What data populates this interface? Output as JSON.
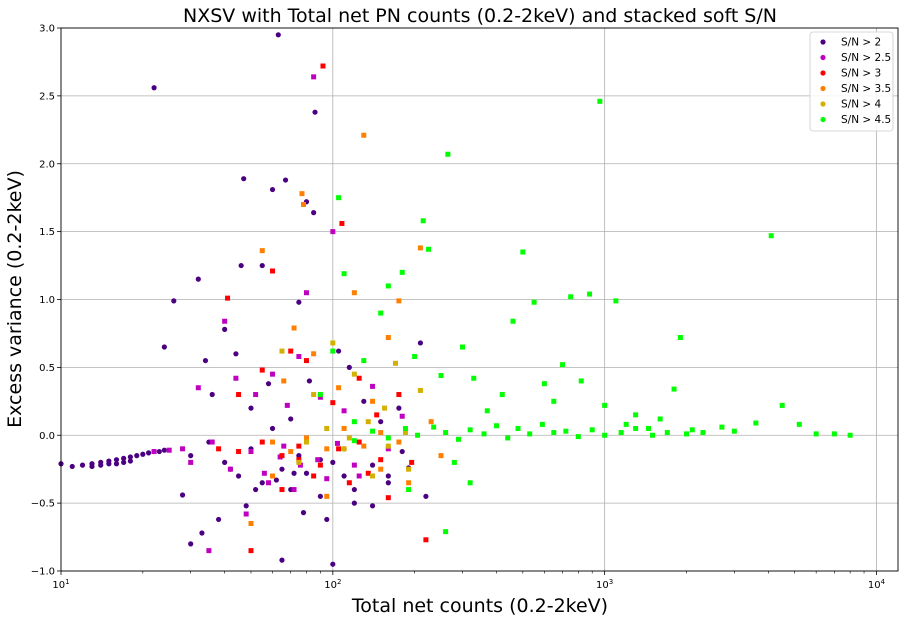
{
  "chart_data": {
    "type": "scatter",
    "title": "NXSV with Total net PN counts (0.2-2keV) and stacked soft S/N",
    "xlabel": "Total net counts (0.2-2keV)",
    "ylabel": "Excess variance (0.2-2keV)",
    "xscale": "log",
    "xlim": [
      10,
      12000
    ],
    "ylim": [
      -1.0,
      3.0
    ],
    "grid": true,
    "legend_position": "top-right",
    "x_ticks": [
      {
        "value": 10,
        "base": "10",
        "exp": "1"
      },
      {
        "value": 100,
        "base": "10",
        "exp": "2"
      },
      {
        "value": 1000,
        "base": "10",
        "exp": "3"
      },
      {
        "value": 10000,
        "base": "10",
        "exp": "4"
      }
    ],
    "y_ticks": [
      {
        "value": -1.0,
        "label": "−1.0"
      },
      {
        "value": -0.5,
        "label": "−0.5"
      },
      {
        "value": 0.0,
        "label": "0.0"
      },
      {
        "value": 0.5,
        "label": "0.5"
      },
      {
        "value": 1.0,
        "label": "1.0"
      },
      {
        "value": 1.5,
        "label": "1.5"
      },
      {
        "value": 2.0,
        "label": "2.0"
      },
      {
        "value": 2.5,
        "label": "2.5"
      },
      {
        "value": 3.0,
        "label": "3.0"
      }
    ],
    "series": [
      {
        "name": "S/N > 2",
        "color": "#4b0082",
        "marker": "circle",
        "points": [
          [
            10,
            -0.21
          ],
          [
            11,
            -0.23
          ],
          [
            12,
            -0.22
          ],
          [
            13,
            -0.21
          ],
          [
            14,
            -0.2
          ],
          [
            15,
            -0.19
          ],
          [
            16,
            -0.18
          ],
          [
            17,
            -0.17
          ],
          [
            18,
            -0.16
          ],
          [
            19,
            -0.15
          ],
          [
            20,
            -0.14
          ],
          [
            21,
            -0.13
          ],
          [
            22,
            -0.12
          ],
          [
            23,
            -0.12
          ],
          [
            24,
            -0.11
          ],
          [
            13,
            -0.23
          ],
          [
            14,
            -0.22
          ],
          [
            15,
            -0.21
          ],
          [
            16,
            -0.21
          ],
          [
            17,
            -0.2
          ],
          [
            18,
            -0.19
          ],
          [
            22,
            2.56
          ],
          [
            24,
            0.65
          ],
          [
            26,
            0.99
          ],
          [
            28,
            -0.44
          ],
          [
            30,
            -0.8
          ],
          [
            32,
            1.15
          ],
          [
            33,
            -0.72
          ],
          [
            34,
            0.55
          ],
          [
            36,
            0.3
          ],
          [
            38,
            -0.62
          ],
          [
            40,
            0.78
          ],
          [
            42,
            -0.25
          ],
          [
            44,
            0.6
          ],
          [
            46,
            1.25
          ],
          [
            47,
            1.89
          ],
          [
            48,
            -0.52
          ],
          [
            50,
            0.2
          ],
          [
            52,
            -0.4
          ],
          [
            55,
            1.25
          ],
          [
            58,
            0.38
          ],
          [
            60,
            1.81
          ],
          [
            62,
            -0.33
          ],
          [
            63,
            2.95
          ],
          [
            65,
            -0.92
          ],
          [
            67,
            1.88
          ],
          [
            70,
            0.12
          ],
          [
            72,
            -0.28
          ],
          [
            75,
            0.98
          ],
          [
            78,
            -0.57
          ],
          [
            80,
            1.72
          ],
          [
            82,
            0.4
          ],
          [
            85,
            1.64
          ],
          [
            86,
            2.38
          ],
          [
            90,
            -0.18
          ],
          [
            95,
            -0.62
          ],
          [
            100,
            -0.95
          ],
          [
            105,
            0.62
          ],
          [
            110,
            -0.3
          ],
          [
            115,
            0.5
          ],
          [
            120,
            -0.4
          ],
          [
            130,
            0.25
          ],
          [
            140,
            -0.52
          ],
          [
            150,
            0.1
          ],
          [
            160,
            -0.35
          ],
          [
            175,
            0.2
          ],
          [
            190,
            -0.24
          ],
          [
            210,
            0.68
          ],
          [
            220,
            -0.45
          ],
          [
            30,
            -0.15
          ],
          [
            35,
            -0.05
          ],
          [
            40,
            -0.2
          ],
          [
            45,
            -0.3
          ],
          [
            50,
            -0.1
          ],
          [
            55,
            -0.35
          ],
          [
            60,
            0.05
          ],
          [
            65,
            -0.25
          ],
          [
            70,
            -0.4
          ],
          [
            75,
            -0.15
          ],
          [
            80,
            -0.28
          ],
          [
            90,
            -0.45
          ],
          [
            100,
            -0.2
          ],
          [
            110,
            -0.1
          ],
          [
            120,
            -0.5
          ],
          [
            140,
            -0.22
          ],
          [
            160,
            -0.3
          ],
          [
            180,
            -0.12
          ]
        ]
      },
      {
        "name": "S/N > 2.5",
        "color": "#c000c0",
        "marker": "square",
        "points": [
          [
            22,
            -0.12
          ],
          [
            25,
            -0.11
          ],
          [
            28,
            -0.1
          ],
          [
            32,
            0.35
          ],
          [
            35,
            -0.85
          ],
          [
            40,
            0.84
          ],
          [
            44,
            0.42
          ],
          [
            48,
            -0.58
          ],
          [
            52,
            0.3
          ],
          [
            56,
            -0.28
          ],
          [
            60,
            0.45
          ],
          [
            64,
            -0.16
          ],
          [
            68,
            0.22
          ],
          [
            72,
            -0.4
          ],
          [
            75,
            0.58
          ],
          [
            80,
            1.05
          ],
          [
            85,
            2.64
          ],
          [
            90,
            0.28
          ],
          [
            95,
            -0.32
          ],
          [
            100,
            1.5
          ],
          [
            110,
            0.18
          ],
          [
            120,
            -0.22
          ],
          [
            140,
            0.36
          ],
          [
            160,
            -0.1
          ],
          [
            180,
            0.14
          ],
          [
            30,
            -0.2
          ],
          [
            36,
            -0.05
          ],
          [
            42,
            -0.25
          ],
          [
            50,
            -0.12
          ],
          [
            58,
            -0.35
          ],
          [
            66,
            -0.08
          ],
          [
            76,
            -0.22
          ],
          [
            88,
            -0.18
          ],
          [
            104,
            -0.06
          ],
          [
            125,
            -0.3
          ]
        ]
      },
      {
        "name": "S/N > 3",
        "color": "#ff0000",
        "marker": "square",
        "points": [
          [
            38,
            -0.1
          ],
          [
            41,
            1.01
          ],
          [
            45,
            0.3
          ],
          [
            50,
            -0.85
          ],
          [
            55,
            0.48
          ],
          [
            60,
            1.21
          ],
          [
            65,
            -0.4
          ],
          [
            70,
            0.62
          ],
          [
            75,
            -0.18
          ],
          [
            80,
            0.55
          ],
          [
            85,
            -0.3
          ],
          [
            92,
            2.72
          ],
          [
            100,
            0.24
          ],
          [
            108,
            1.56
          ],
          [
            115,
            -0.35
          ],
          [
            125,
            0.42
          ],
          [
            135,
            -0.28
          ],
          [
            145,
            0.15
          ],
          [
            160,
            -0.46
          ],
          [
            175,
            0.3
          ],
          [
            195,
            -0.2
          ],
          [
            220,
            -0.77
          ],
          [
            45,
            -0.12
          ],
          [
            55,
            -0.05
          ],
          [
            65,
            -0.15
          ],
          [
            75,
            -0.08
          ],
          [
            90,
            -0.22
          ],
          [
            105,
            -0.1
          ],
          [
            125,
            -0.05
          ],
          [
            150,
            -0.18
          ]
        ]
      },
      {
        "name": "S/N > 3.5",
        "color": "#ff8000",
        "marker": "square",
        "points": [
          [
            50,
            -0.65
          ],
          [
            55,
            1.36
          ],
          [
            60,
            -0.3
          ],
          [
            66,
            0.4
          ],
          [
            72,
            0.79
          ],
          [
            77,
            1.78
          ],
          [
            78,
            1.7
          ],
          [
            85,
            0.6
          ],
          [
            95,
            -0.45
          ],
          [
            105,
            0.35
          ],
          [
            120,
            1.05
          ],
          [
            130,
            2.21
          ],
          [
            140,
            0.25
          ],
          [
            150,
            -0.25
          ],
          [
            160,
            0.72
          ],
          [
            175,
            0.99
          ],
          [
            190,
            -0.35
          ],
          [
            210,
            1.38
          ],
          [
            230,
            0.1
          ],
          [
            250,
            -0.15
          ],
          [
            60,
            -0.05
          ],
          [
            70,
            -0.12
          ],
          [
            80,
            -0.02
          ],
          [
            95,
            -0.1
          ],
          [
            110,
            0.05
          ],
          [
            130,
            -0.08
          ],
          [
            150,
            0.02
          ],
          [
            175,
            -0.05
          ]
        ]
      },
      {
        "name": "S/N > 4",
        "color": "#d4b000",
        "marker": "square",
        "points": [
          [
            65,
            0.62
          ],
          [
            75,
            -0.2
          ],
          [
            85,
            0.3
          ],
          [
            100,
            0.68
          ],
          [
            110,
            -0.1
          ],
          [
            120,
            0.45
          ],
          [
            140,
            -0.3
          ],
          [
            155,
            0.2
          ],
          [
            170,
            0.53
          ],
          [
            190,
            -0.25
          ],
          [
            210,
            0.33
          ],
          [
            80,
            -0.05
          ],
          [
            95,
            0.05
          ],
          [
            115,
            -0.02
          ],
          [
            135,
            0.1
          ],
          [
            160,
            -0.08
          ],
          [
            185,
            0.02
          ]
        ]
      },
      {
        "name": "S/N > 4.5",
        "color": "#00ff00",
        "marker": "square",
        "points": [
          [
            90,
            0.3
          ],
          [
            100,
            0.62
          ],
          [
            105,
            1.75
          ],
          [
            110,
            1.19
          ],
          [
            120,
            0.1
          ],
          [
            130,
            0.55
          ],
          [
            150,
            0.9
          ],
          [
            160,
            1.1
          ],
          [
            180,
            1.2
          ],
          [
            200,
            0.58
          ],
          [
            215,
            1.58
          ],
          [
            225,
            1.37
          ],
          [
            250,
            0.44
          ],
          [
            265,
            2.07
          ],
          [
            280,
            -0.2
          ],
          [
            300,
            0.65
          ],
          [
            330,
            0.42
          ],
          [
            370,
            0.18
          ],
          [
            420,
            0.3
          ],
          [
            460,
            0.84
          ],
          [
            500,
            1.35
          ],
          [
            550,
            0.98
          ],
          [
            600,
            0.38
          ],
          [
            650,
            0.25
          ],
          [
            700,
            0.52
          ],
          [
            750,
            1.02
          ],
          [
            820,
            0.4
          ],
          [
            880,
            1.04
          ],
          [
            960,
            2.46
          ],
          [
            1000,
            0.22
          ],
          [
            1100,
            0.99
          ],
          [
            1200,
            0.08
          ],
          [
            1300,
            0.15
          ],
          [
            1450,
            0.05
          ],
          [
            1600,
            0.12
          ],
          [
            1800,
            0.34
          ],
          [
            1900,
            0.72
          ],
          [
            2100,
            0.04
          ],
          [
            2300,
            0.02
          ],
          [
            2700,
            0.06
          ],
          [
            3000,
            0.03
          ],
          [
            3600,
            0.09
          ],
          [
            4100,
            1.47
          ],
          [
            4500,
            0.22
          ],
          [
            5200,
            0.08
          ],
          [
            6000,
            0.01
          ],
          [
            7000,
            0.01
          ],
          [
            8000,
            0.0
          ],
          [
            260,
            -0.71
          ],
          [
            320,
            -0.35
          ],
          [
            190,
            -0.4
          ],
          [
            120,
            -0.04
          ],
          [
            140,
            0.03
          ],
          [
            160,
            -0.02
          ],
          [
            185,
            0.05
          ],
          [
            205,
            0.0
          ],
          [
            235,
            0.06
          ],
          [
            260,
            0.02
          ],
          [
            290,
            -0.03
          ],
          [
            320,
            0.04
          ],
          [
            360,
            0.01
          ],
          [
            400,
            0.07
          ],
          [
            440,
            -0.02
          ],
          [
            480,
            0.05
          ],
          [
            530,
            0.01
          ],
          [
            590,
            0.08
          ],
          [
            650,
            0.02
          ],
          [
            720,
            0.03
          ],
          [
            800,
            -0.01
          ],
          [
            900,
            0.04
          ],
          [
            1000,
            0.0
          ],
          [
            1150,
            0.02
          ],
          [
            1300,
            0.05
          ],
          [
            1500,
            0.0
          ],
          [
            1700,
            0.02
          ],
          [
            2000,
            0.01
          ]
        ]
      }
    ]
  }
}
